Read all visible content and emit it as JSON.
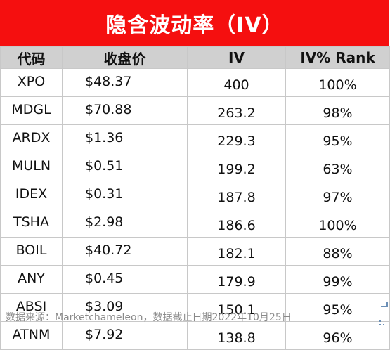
{
  "title": "隐含波动率（IV）",
  "headers": [
    "代码",
    "收盘价",
    "IV",
    "IV% Rank"
  ],
  "rows": [
    [
      "XPO",
      "$48.37",
      "400",
      "100%"
    ],
    [
      "MDGL",
      "$70.88",
      "263.2",
      "98%"
    ],
    [
      "ARDX",
      "$1.36",
      "229.3",
      "95%"
    ],
    [
      "MULN",
      "$0.51",
      "199.2",
      "63%"
    ],
    [
      "IDEX",
      "$0.31",
      "187.8",
      "97%"
    ],
    [
      "TSHA",
      "$2.98",
      "186.6",
      "100%"
    ],
    [
      "BOIL",
      "$40.72",
      "182.1",
      "88%"
    ],
    [
      "ANY",
      "$0.45",
      "179.9",
      "99%"
    ],
    [
      "ABSI",
      "$3.09",
      "150.1",
      "95%"
    ],
    [
      "ATNM",
      "$7.92",
      "138.8",
      "96%"
    ]
  ],
  "footer": "数据来源：Marketchameleon，数据截止日期2022年10月25日",
  "colors": {
    "title_bg": "#f50f0f",
    "header_bg": "#d0d0d0",
    "title_text": "#ffffff"
  }
}
